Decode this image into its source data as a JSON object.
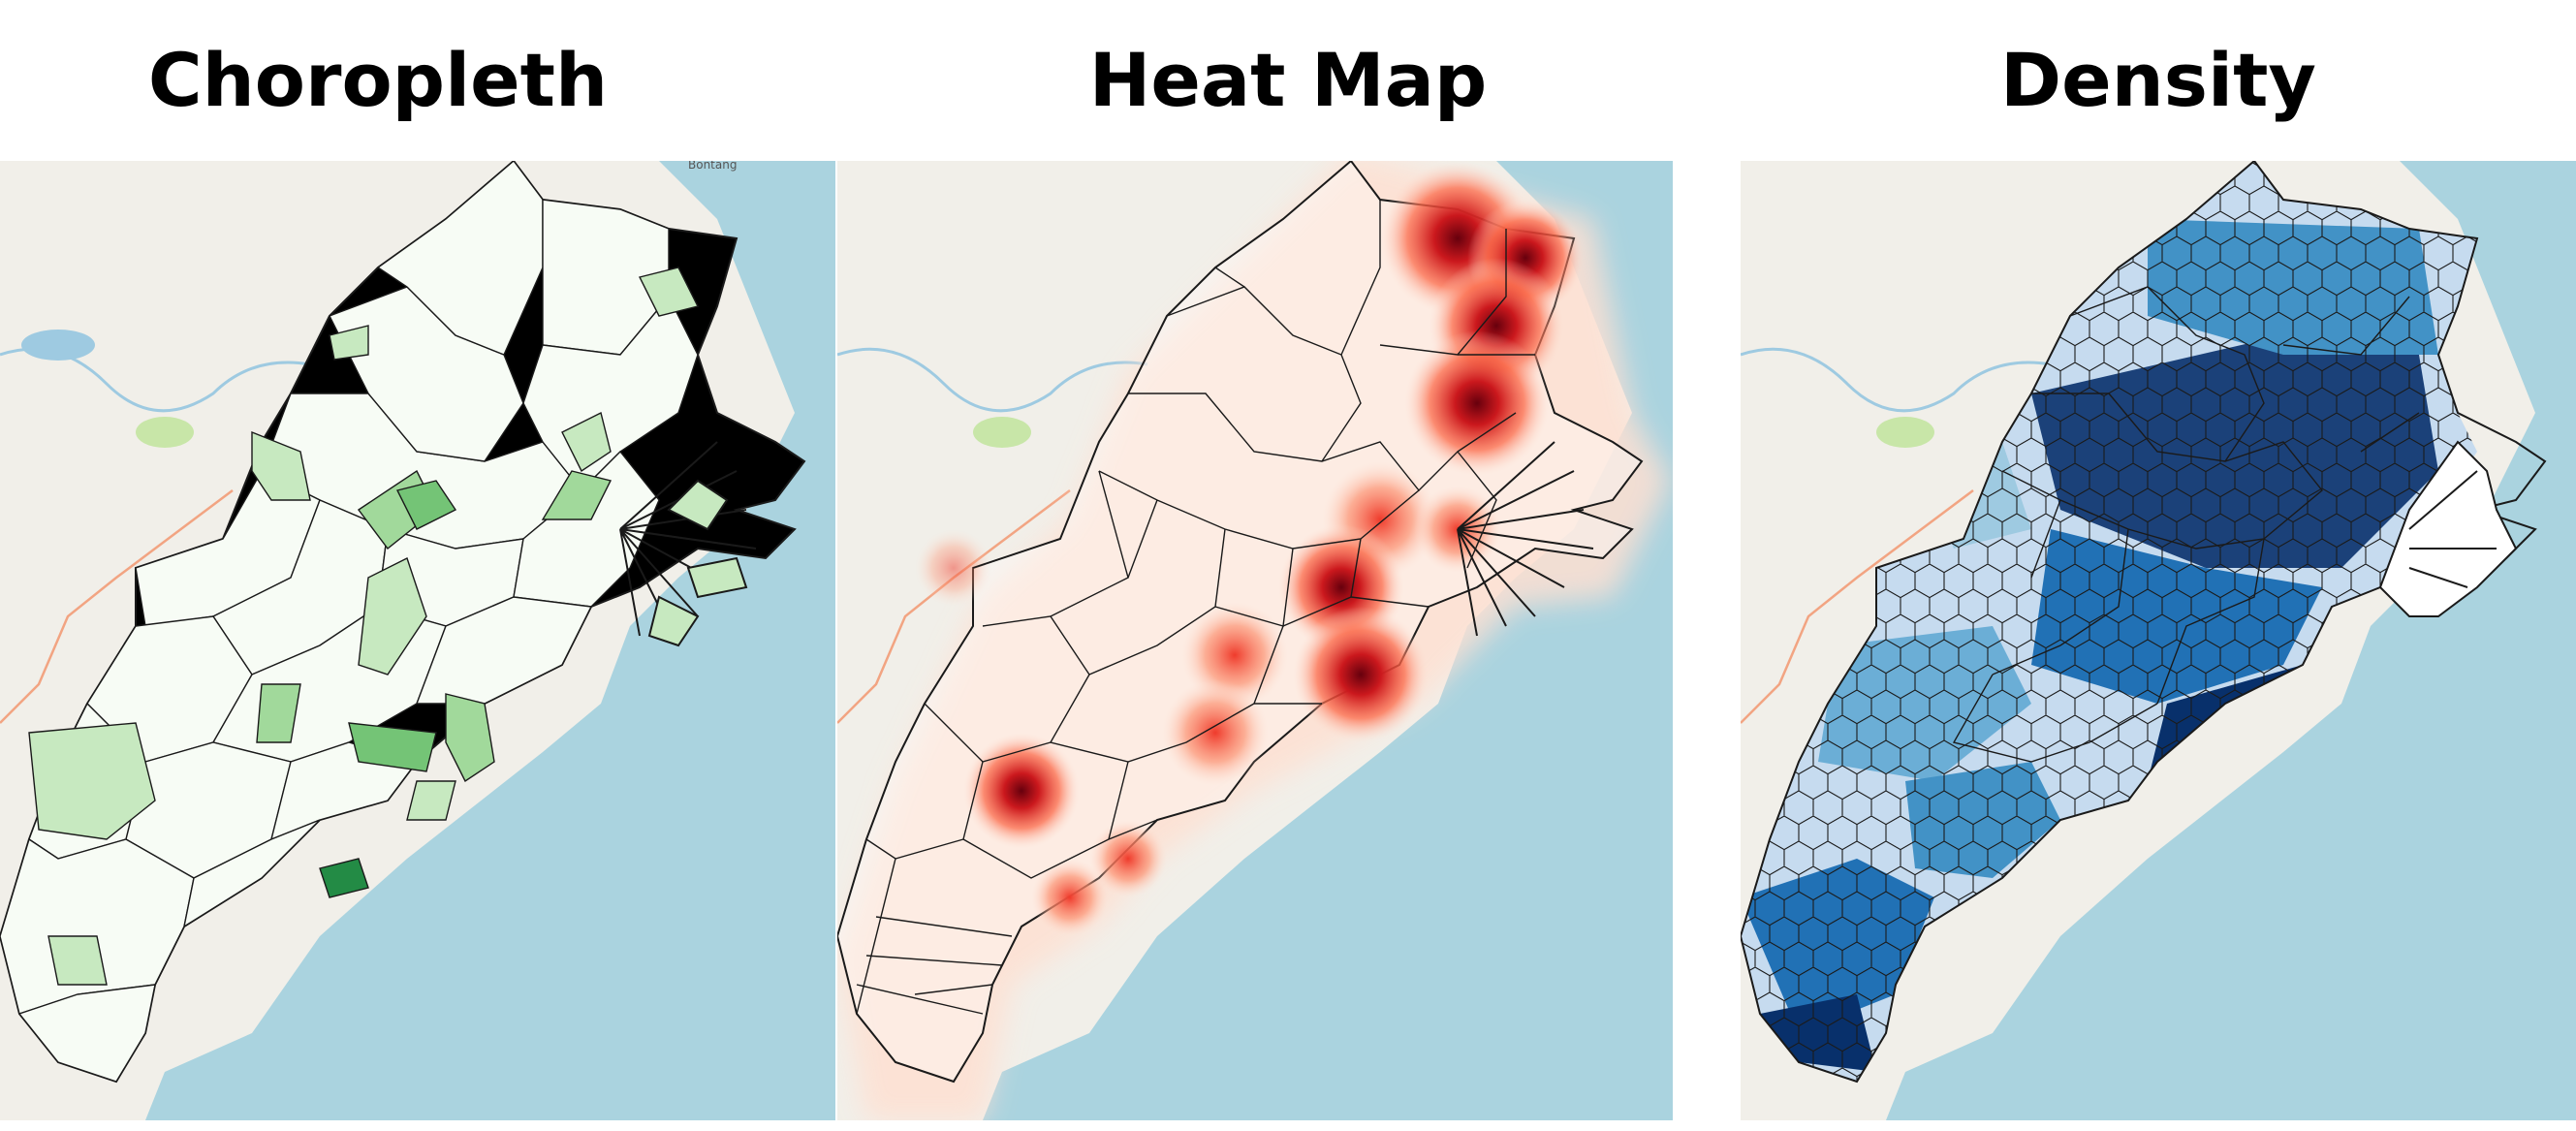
{
  "panels": [
    {
      "title": "Choropleth",
      "place_label": "Bontang",
      "style": "choropleth"
    },
    {
      "title": "Heat Map",
      "place_label": "",
      "style": "heatmap"
    },
    {
      "title": "Density",
      "place_label": "",
      "style": "density"
    }
  ],
  "colors": {
    "land": "#f1efe9",
    "water": "#aad3df",
    "park": "#c8e6a8",
    "road": "#f2a482",
    "river": "#9ecae1",
    "border": "#1a1a1a",
    "choropleth_light": "#f7fcf5",
    "choropleth_mid": "#c7e9c0",
    "choropleth_high": "#74c476",
    "choropleth_max": "#238b45",
    "heat_core": "#67000d",
    "heat_mid": "#ef3b2c",
    "heat_light": "#fee0d2",
    "density_low": "#c6dbef",
    "density_mid": "#4292c6",
    "density_high": "#08306b"
  }
}
